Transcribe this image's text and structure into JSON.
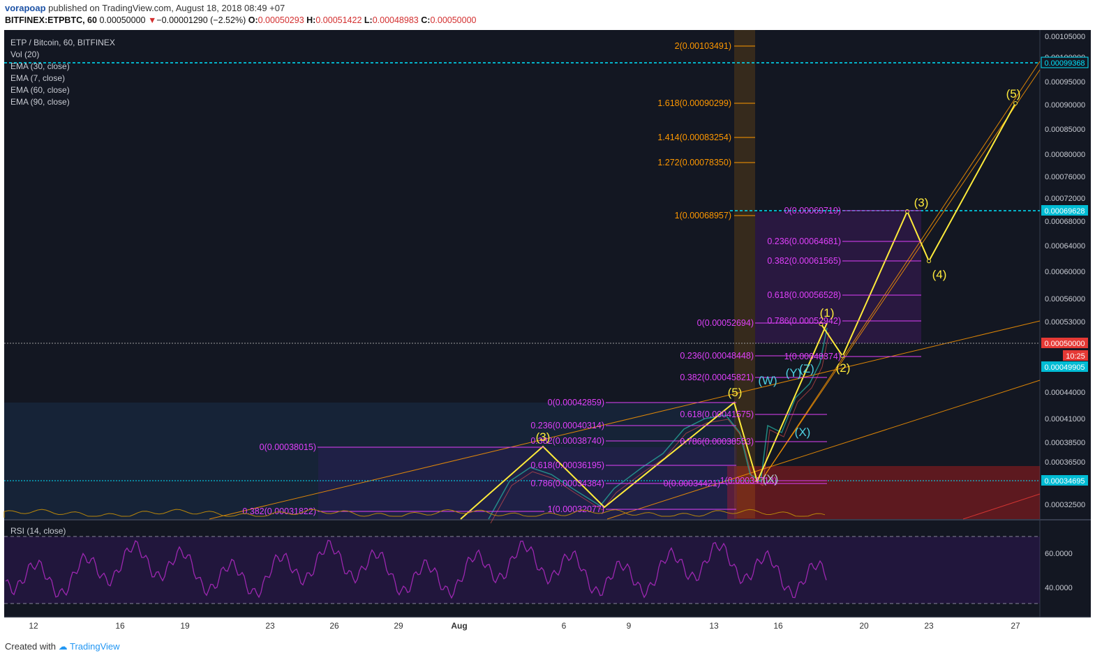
{
  "header": {
    "author": "vorapoap",
    "published": "published on TradingView.com, August 18, 2018 08:49 +07",
    "symbol": "BITFINEX:ETPBTC, 60",
    "last": "0.00050000",
    "change": "−0.00001290 (−2.52%)",
    "open_label": "O:",
    "open": "0.00050293",
    "high_label": "H:",
    "high": "0.00051422",
    "low_label": "L:",
    "low": "0.00048983",
    "close_label": "C:",
    "close": "0.00050000"
  },
  "legend": [
    "ETP / Bitcoin, 60, BITFINEX",
    "Vol (20)",
    "EMA (30, close)",
    "EMA (7, close)",
    "EMA (60, close)",
    "EMA (90, close)"
  ],
  "rsi_label": "RSI (14, close)",
  "footer": {
    "created": "Created with",
    "brand": "TradingView"
  },
  "colors": {
    "background": "#131722",
    "wave": "#ffeb3b",
    "fib_magenta": "#e040fb",
    "fib_orange": "#ff9800",
    "cyan": "#00e5ff",
    "rsi": "#9c27b0",
    "price_tag_red": "#e53935"
  },
  "chart_data": [
    {
      "type": "line",
      "title": "ETP / Bitcoin, 60, BITFINEX",
      "y_axis_ticks": [
        "0.00105000",
        "0.00100000",
        "0.00095000",
        "0.00090000",
        "0.00085000",
        "0.00080000",
        "0.00076000",
        "0.00072000",
        "0.00068000",
        "0.00064000",
        "0.00060000",
        "0.00056000",
        "0.00053000",
        "0.00044000",
        "0.00041000",
        "0.00038500",
        "0.00036500",
        "0.00032500"
      ],
      "price_tags": [
        {
          "label": "0.00099368",
          "style": "cyan-outline"
        },
        {
          "label": "0.00069628",
          "style": "cyan"
        },
        {
          "label": "0.00050000",
          "style": "red"
        },
        {
          "label": "10:25",
          "style": "red"
        },
        {
          "label": "0.00049905",
          "style": "cyan"
        },
        {
          "label": "0.00034695",
          "style": "cyan"
        }
      ],
      "x_axis_ticks": [
        "12",
        "16",
        "19",
        "23",
        "26",
        "29",
        "Aug",
        "6",
        "9",
        "13",
        "16",
        "20",
        "23",
        "27"
      ],
      "wave_labels_yellow": [
        "(3)",
        "(5)",
        "(1)",
        "(2)",
        "(3)",
        "(4)",
        "(5)"
      ],
      "wave_labels_cyan": [
        "(W)",
        "(X)",
        "(Y)",
        "(Z)",
        "(X)"
      ],
      "projected_waves": [
        {
          "label": "(1)",
          "date": "Aug 18",
          "price": 0.000527
        },
        {
          "label": "(2)",
          "date": "Aug 19",
          "price": 0.000486
        },
        {
          "label": "(3)",
          "date": "Aug 22",
          "price": 0.000697
        },
        {
          "label": "(4)",
          "date": "Aug 23",
          "price": 0.000616
        },
        {
          "label": "(5)",
          "date": "Aug 27",
          "price": 0.000903
        }
      ],
      "fib_extension_orange": [
        {
          "label": "2(0.00103491)"
        },
        {
          "label": "1.618(0.00090299)"
        },
        {
          "label": "1.414(0.00083254)"
        },
        {
          "label": "1.272(0.00078350)"
        },
        {
          "label": "1(0.00068957)"
        }
      ],
      "fib_retracement_magenta": [
        {
          "label": "0(0.00069719)"
        },
        {
          "label": "0.236(0.00064681)"
        },
        {
          "label": "0.382(0.00061565)"
        },
        {
          "label": "0.618(0.00056528)"
        },
        {
          "label": "0.786(0.00052942)"
        },
        {
          "label": "1(0.00048374)"
        },
        {
          "label": "0(0.00052694)"
        },
        {
          "label": "0.236(0.00048448)"
        },
        {
          "label": "0.382(0.00045821)"
        },
        {
          "label": "0.618(0.00041575)"
        },
        {
          "label": "0.786(0.00038553)"
        },
        {
          "label": "0(0.00034421)"
        },
        {
          "label": "1(0.00034712)"
        },
        {
          "label": "0(0.00042859)"
        },
        {
          "label": "0.236(0.00040314)"
        },
        {
          "label": "0.382(0.00038740)"
        },
        {
          "label": "0.618(0.00036195)"
        },
        {
          "label": "0.786(0.00034384)"
        },
        {
          "label": "1(0.00032077)"
        },
        {
          "label": "0(0.00038015)"
        },
        {
          "label": "0.382(0.00031822)"
        }
      ]
    },
    {
      "type": "line",
      "title": "RSI (14, close)",
      "y_axis_ticks": [
        "60.0000",
        "40.0000"
      ],
      "overbought": 70,
      "oversold": 30
    }
  ]
}
